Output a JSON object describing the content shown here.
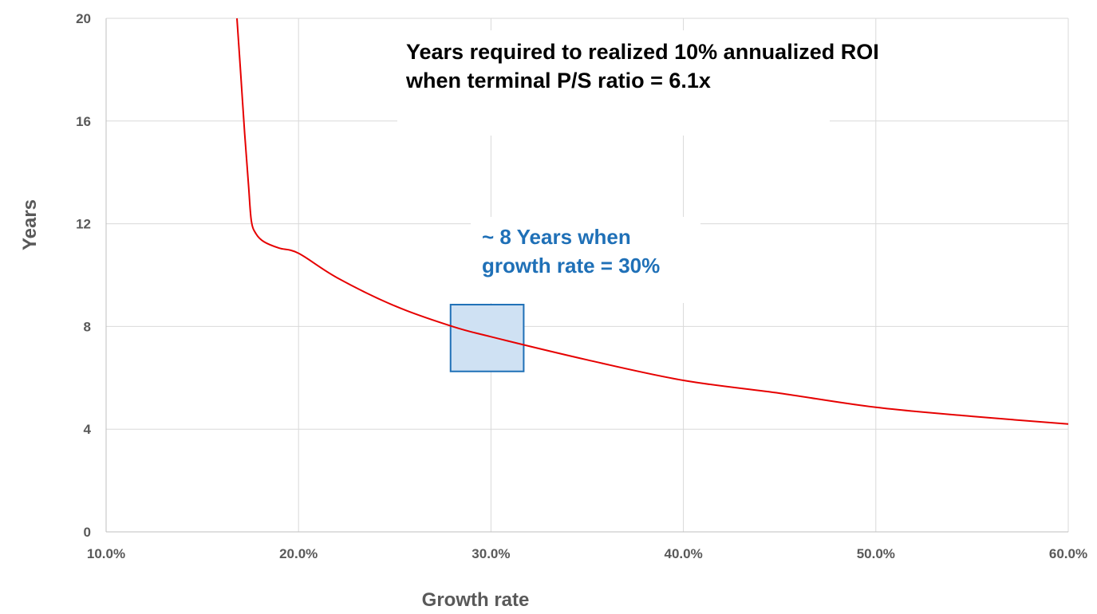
{
  "chart_data": {
    "type": "line",
    "title_lines": [
      "Years required to realized 10% annualized ROI",
      "when terminal P/S ratio = 6.1x"
    ],
    "xlabel": "Growth rate",
    "ylabel": "Years",
    "xlim": [
      0.1,
      0.6
    ],
    "ylim": [
      0,
      20
    ],
    "x_ticks": [
      {
        "value": 0.1,
        "label": "10.0%"
      },
      {
        "value": 0.2,
        "label": "20.0%"
      },
      {
        "value": 0.3,
        "label": "30.0%"
      },
      {
        "value": 0.4,
        "label": "40.0%"
      },
      {
        "value": 0.5,
        "label": "50.0%"
      },
      {
        "value": 0.6,
        "label": "60.0%"
      }
    ],
    "y_ticks": [
      {
        "value": 0,
        "label": "0"
      },
      {
        "value": 4,
        "label": "4"
      },
      {
        "value": 8,
        "label": "8"
      },
      {
        "value": 12,
        "label": "12"
      },
      {
        "value": 16,
        "label": "16"
      },
      {
        "value": 20,
        "label": "20"
      }
    ],
    "grid": true,
    "series": [
      {
        "color": "#e60000",
        "x": [
          0.168,
          0.17,
          0.172,
          0.174,
          0.1755,
          0.178,
          0.182,
          0.19,
          0.2,
          0.22,
          0.25,
          0.28,
          0.3,
          0.35,
          0.4,
          0.45,
          0.5,
          0.55,
          0.6
        ],
        "y": [
          20.0,
          17.8,
          15.5,
          13.5,
          12.1,
          11.6,
          11.3,
          11.05,
          10.85,
          9.9,
          8.8,
          8.0,
          7.6,
          6.7,
          5.9,
          5.4,
          4.85,
          4.5,
          4.2
        ]
      }
    ],
    "annotation": {
      "lines": [
        "~ 8 Years when",
        "growth rate = 30%"
      ],
      "color": "#1f70b7",
      "highlight": {
        "x": [
          0.279,
          0.317
        ],
        "y": [
          6.25,
          8.85
        ],
        "fill": "#cfe1f3",
        "stroke": "#1f70b7"
      }
    }
  }
}
